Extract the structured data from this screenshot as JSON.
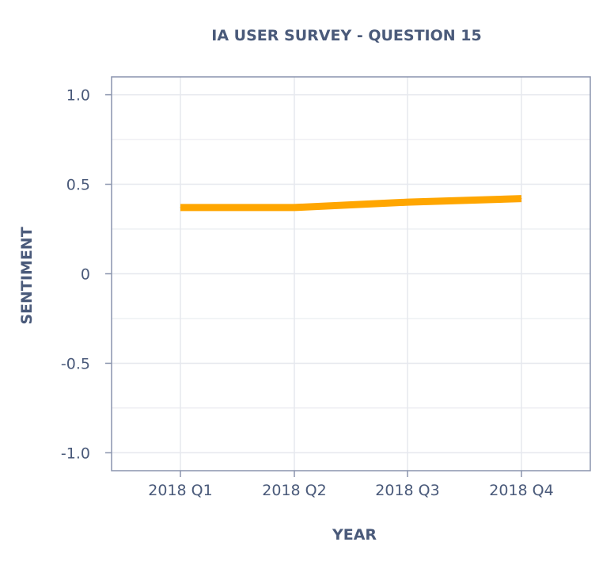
{
  "chart_data": {
    "type": "line",
    "title": "IA USER SURVEY - QUESTION 15",
    "xlabel": "YEAR",
    "ylabel": "SENTIMENT",
    "categories": [
      "2018 Q1",
      "2018 Q2",
      "2018 Q3",
      "2018 Q4"
    ],
    "series": [
      {
        "values": [
          0.37,
          0.37,
          0.4,
          0.42
        ],
        "color": "#ffa600"
      }
    ],
    "ylim": [
      -1.1,
      1.1
    ],
    "y_ticks": [
      1.0,
      0.5,
      0,
      -0.5,
      -1.0
    ],
    "y_tick_labels": [
      "1.0",
      "0.5",
      "0",
      "-0.5",
      "-1.0"
    ],
    "y_minor_ticks": [
      0.75,
      0.25,
      -0.25,
      -0.75
    ],
    "grid": true,
    "colors": {
      "text": "#4a5a7a",
      "axis": "#8a94ad",
      "grid": "#e6e8ee",
      "line": "#ffa600"
    }
  }
}
